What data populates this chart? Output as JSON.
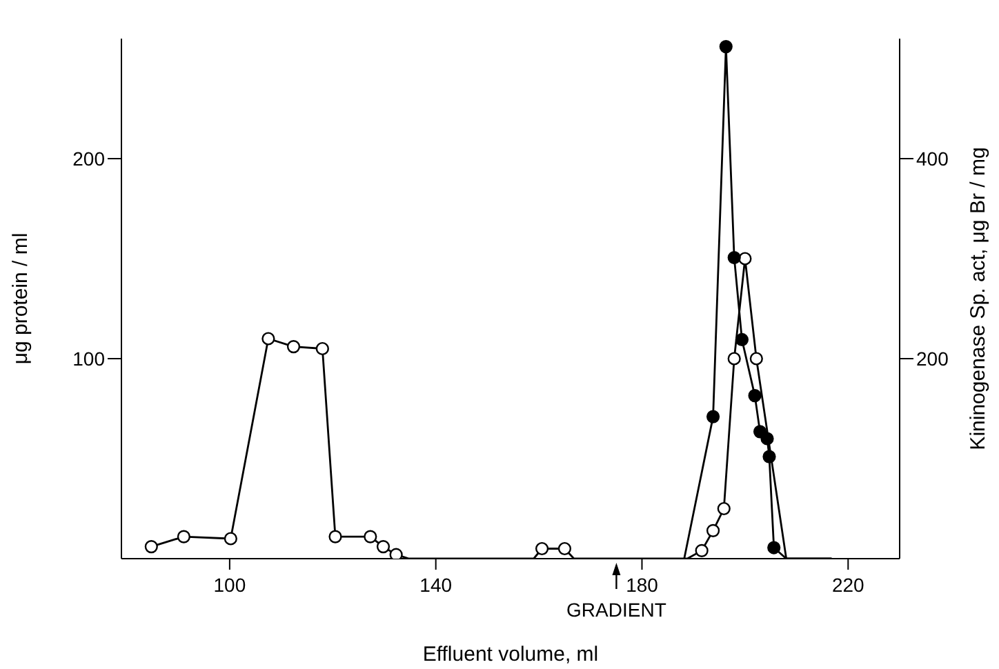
{
  "chart_data": {
    "type": "line",
    "xlabel": "Effluent volume, ml",
    "ylabel": "μg protein / ml",
    "y2label": "Kininogenase Sp. act, μg Br / mg",
    "xlim": [
      79,
      230
    ],
    "xticks": [
      100,
      140,
      180,
      220
    ],
    "ylim": [
      0,
      260
    ],
    "yticks": [
      100,
      200
    ],
    "y2lim": [
      0,
      520
    ],
    "y2ticks": [
      200,
      400
    ],
    "marker": "circle",
    "line_style": "solid",
    "annotations": [
      "GRADIENT"
    ],
    "series": [
      {
        "color": "#000000",
        "axis": "y",
        "x": [
          84.8,
          91.1,
          100.2,
          107.5,
          112.4,
          118,
          120.5,
          127.3,
          129.8,
          132.3,
          134.8,
          159,
          160.6,
          165,
          166.8,
          188.8,
          191.6,
          193.8,
          195.9,
          197.9,
          200,
          202.2,
          208,
          216.8
        ],
        "values": [
          6,
          11,
          10,
          110,
          106,
          105,
          11,
          11,
          6,
          2,
          0,
          0,
          5,
          5,
          0,
          0,
          4,
          14,
          25,
          100,
          150,
          100,
          0,
          0
        ]
      },
      {
        "color": "#000000",
        "axis": "y2",
        "x": [
          188.2,
          193.8,
          196.3,
          197.9,
          199.4,
          201.9,
          202.9,
          204.3,
          204.7,
          205.6,
          208,
          216.8
        ],
        "values": [
          0,
          142,
          512,
          301,
          219,
          163,
          127,
          120,
          102,
          11,
          0,
          0
        ]
      }
    ]
  }
}
